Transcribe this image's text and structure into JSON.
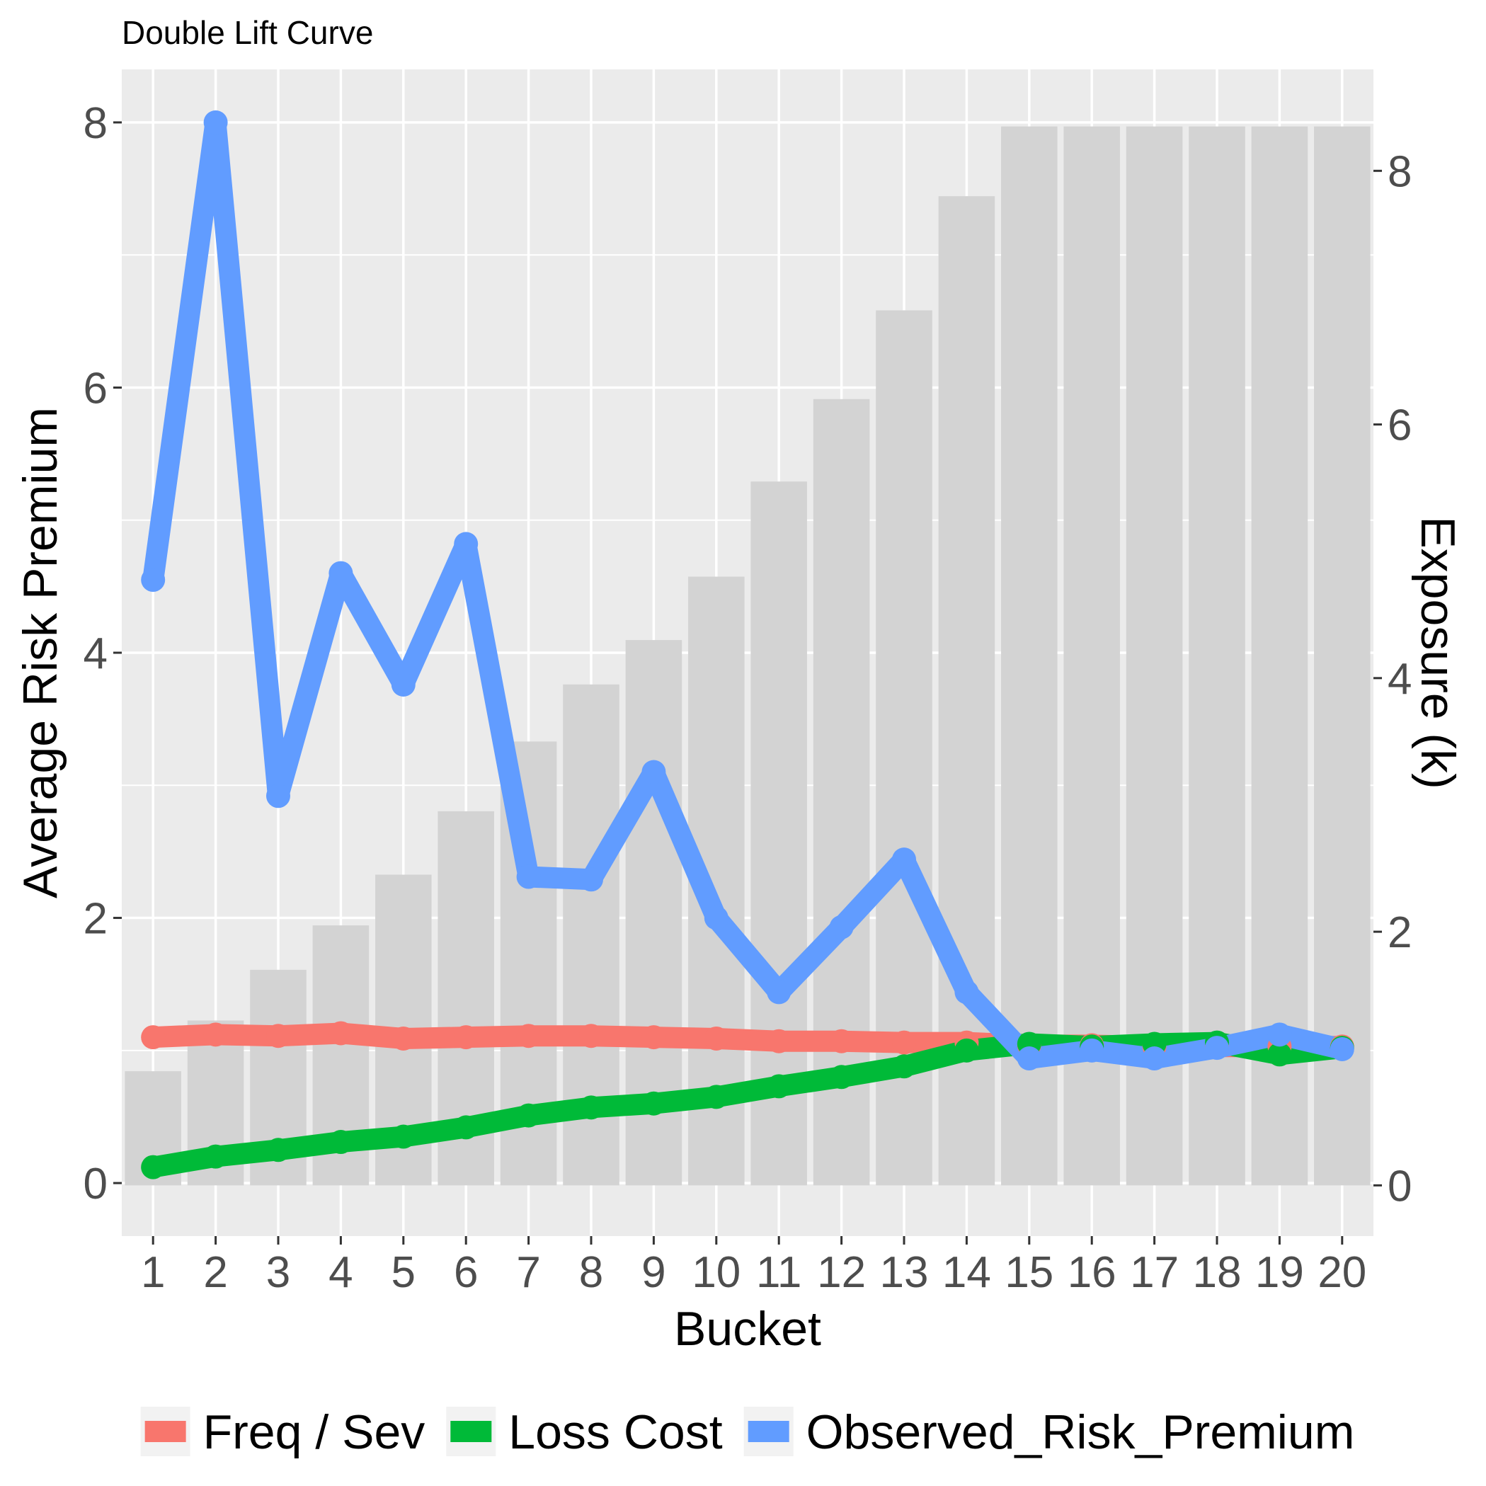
{
  "chart_data": {
    "type": "line",
    "title": "Double Lift Curve",
    "xlabel": "Bucket",
    "ylabel": "Average Risk Premium",
    "y2label": "Exposure (k)",
    "categories": [
      "1",
      "2",
      "3",
      "4",
      "5",
      "6",
      "7",
      "8",
      "9",
      "10",
      "11",
      "12",
      "13",
      "14",
      "15",
      "16",
      "17",
      "18",
      "19",
      "20"
    ],
    "ylim": [
      -0.4,
      8.4
    ],
    "y_ticks": [
      "0",
      "2",
      "4",
      "6",
      "8"
    ],
    "y2lim": [
      -0.4,
      8.8
    ],
    "y2_ticks": [
      "0",
      "2",
      "4",
      "6",
      "8"
    ],
    "grid": true,
    "legend_position": "bottom",
    "bars": {
      "name": "Exposure",
      "axis": "secondary",
      "color": "#d3d3d3",
      "values": [
        0.9,
        1.3,
        1.7,
        2.05,
        2.45,
        2.95,
        3.5,
        3.95,
        4.3,
        4.8,
        5.55,
        6.2,
        6.9,
        7.8,
        8.35,
        8.35,
        8.35,
        8.35,
        8.35,
        8.35
      ]
    },
    "series": [
      {
        "name": "Freq / Sev",
        "color": "#f8766d",
        "values": [
          1.1,
          1.12,
          1.11,
          1.13,
          1.09,
          1.1,
          1.11,
          1.11,
          1.1,
          1.09,
          1.07,
          1.07,
          1.06,
          1.06,
          1.04,
          1.04,
          1.03,
          1.03,
          1.03,
          1.03
        ]
      },
      {
        "name": "Loss Cost",
        "color": "#00ba38",
        "values": [
          0.12,
          0.2,
          0.25,
          0.31,
          0.35,
          0.42,
          0.51,
          0.57,
          0.6,
          0.65,
          0.73,
          0.8,
          0.88,
          1.0,
          1.05,
          1.03,
          1.05,
          1.06,
          0.97,
          1.02
        ]
      },
      {
        "name": "Observed_Risk_Premium",
        "color": "#619cff",
        "values": [
          4.55,
          8.0,
          2.92,
          4.6,
          3.76,
          4.82,
          2.31,
          2.29,
          3.1,
          2.0,
          1.44,
          1.93,
          2.44,
          1.44,
          0.94,
          1.0,
          0.94,
          1.02,
          1.12,
          1.01
        ]
      }
    ]
  }
}
